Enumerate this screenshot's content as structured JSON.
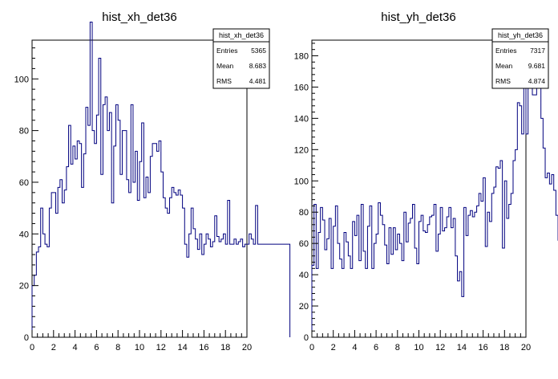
{
  "chart_data": [
    {
      "type": "histogram",
      "title": "hist_xh_det36",
      "xlim": [
        0,
        20
      ],
      "ylim": [
        0,
        115
      ],
      "xticks": [
        0,
        2,
        4,
        6,
        8,
        10,
        12,
        14,
        16,
        18,
        20
      ],
      "yticks": [
        0,
        20,
        40,
        60,
        80,
        100
      ],
      "bin_edges_start": 0,
      "bin_width": 0.2,
      "values": [
        20,
        24,
        33,
        35,
        50,
        40,
        36,
        35,
        50,
        56,
        56,
        48,
        58,
        61,
        52,
        57,
        66,
        82,
        67,
        74,
        69,
        76,
        75,
        58,
        71,
        89,
        82,
        122,
        80,
        75,
        86,
        108,
        63,
        90,
        93,
        80,
        87,
        52,
        74,
        90,
        84,
        63,
        80,
        80,
        61,
        56,
        90,
        60,
        72,
        53,
        68,
        83,
        54,
        62,
        56,
        70,
        75,
        75,
        72,
        76,
        64,
        54,
        50,
        48,
        54,
        58,
        56,
        55,
        57,
        55,
        50,
        36,
        31,
        40,
        50,
        42,
        38,
        34,
        40,
        32,
        36,
        40,
        38,
        35,
        37,
        47,
        39,
        37,
        38,
        40,
        36,
        53,
        36,
        36,
        38,
        36,
        37,
        38,
        35,
        36,
        36,
        40,
        38,
        36,
        51,
        36,
        36,
        36,
        36,
        36,
        36,
        36,
        36,
        36,
        36,
        36,
        36,
        36,
        36,
        36
      ],
      "stats": {
        "header": "hist_xh_det36",
        "rows": [
          {
            "label": "Entries",
            "value": "5365"
          },
          {
            "label": "Mean",
            "value": "8.683"
          },
          {
            "label": "RMS",
            "value": "4.481"
          }
        ]
      },
      "line_color": "#00007f",
      "grid": false,
      "legend": "top-right"
    },
    {
      "type": "histogram",
      "title": "hist_yh_det36",
      "xlim": [
        0,
        20
      ],
      "ylim": [
        0,
        190
      ],
      "xticks": [
        0,
        2,
        4,
        6,
        8,
        10,
        12,
        14,
        16,
        18,
        20
      ],
      "yticks": [
        0,
        20,
        40,
        60,
        80,
        100,
        120,
        140,
        160,
        180
      ],
      "bin_edges_start": 0,
      "bin_width": 0.2,
      "values": [
        46,
        85,
        44,
        67,
        83,
        75,
        56,
        63,
        76,
        44,
        71,
        84,
        60,
        50,
        44,
        67,
        61,
        52,
        44,
        74,
        65,
        78,
        49,
        85,
        55,
        44,
        71,
        84,
        44,
        60,
        66,
        86,
        78,
        72,
        59,
        47,
        70,
        53,
        70,
        56,
        66,
        60,
        49,
        80,
        61,
        73,
        76,
        85,
        57,
        47,
        74,
        78,
        68,
        67,
        72,
        77,
        78,
        85,
        55,
        66,
        83,
        68,
        70,
        77,
        83,
        70,
        76,
        52,
        36,
        42,
        26,
        83,
        65,
        78,
        81,
        77,
        80,
        84,
        92,
        87,
        102,
        58,
        80,
        74,
        92,
        96,
        109,
        108,
        113,
        57,
        100,
        76,
        85,
        92,
        113,
        120,
        150,
        148,
        130,
        160,
        130,
        166,
        170,
        155,
        155,
        180,
        163,
        140,
        121,
        102,
        105,
        98,
        104,
        94,
        78,
        62,
        58,
        59,
        52,
        48
      ],
      "stats": {
        "header": "hist_yh_det36",
        "rows": [
          {
            "label": "Entries",
            "value": "7317"
          },
          {
            "label": "Mean",
            "value": "9.681"
          },
          {
            "label": "RMS",
            "value": "4.874"
          }
        ]
      },
      "line_color": "#00007f",
      "grid": false,
      "legend": "top-right"
    }
  ]
}
